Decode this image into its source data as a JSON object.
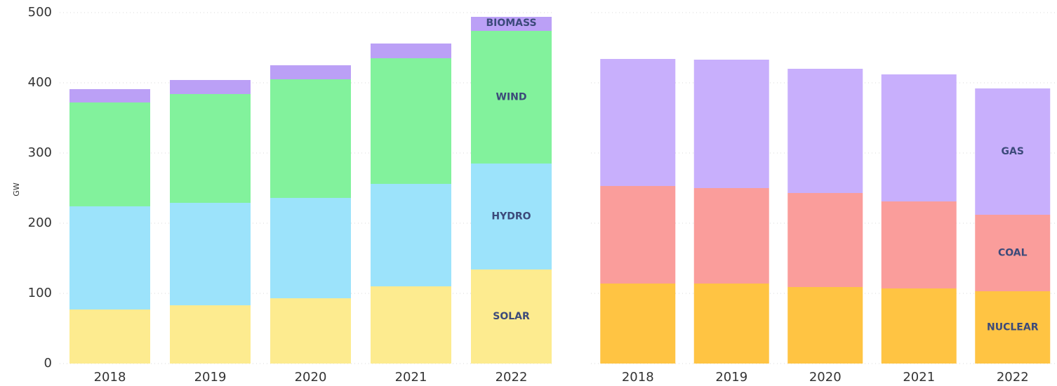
{
  "chart_data": [
    {
      "type": "stacked_bar",
      "ylabel": "GW",
      "ylim": [
        0,
        500
      ],
      "yticks": [
        0,
        100,
        200,
        300,
        400,
        500
      ],
      "grid": true,
      "yaxis_visible": true,
      "categories": [
        "2018",
        "2019",
        "2020",
        "2021",
        "2022"
      ],
      "series": [
        {
          "name": "SOLAR",
          "color": "#fdeb8f",
          "values": [
            77,
            83,
            93,
            110,
            134
          ]
        },
        {
          "name": "HYDRO",
          "color": "#9ce3fb",
          "values": [
            147,
            146,
            143,
            146,
            151
          ]
        },
        {
          "name": "WIND",
          "color": "#82f29c",
          "values": [
            148,
            155,
            169,
            179,
            189
          ]
        },
        {
          "name": "BIOMASS",
          "color": "#bba0f6",
          "values": [
            19,
            20,
            20,
            21,
            20
          ]
        }
      ]
    },
    {
      "type": "stacked_bar",
      "ylim": [
        0,
        500
      ],
      "yticks": [
        0,
        100,
        200,
        300,
        400,
        500
      ],
      "grid": true,
      "yaxis_visible": false,
      "categories": [
        "2018",
        "2019",
        "2020",
        "2021",
        "2022"
      ],
      "series": [
        {
          "name": "NUCLEAR",
          "color": "#ffc443",
          "values": [
            114,
            114,
            109,
            107,
            103
          ]
        },
        {
          "name": "COAL",
          "color": "#fa9d9b",
          "values": [
            139,
            136,
            134,
            124,
            109
          ]
        },
        {
          "name": "GAS",
          "color": "#c8affc",
          "values": [
            181,
            183,
            177,
            181,
            180
          ]
        }
      ]
    }
  ]
}
